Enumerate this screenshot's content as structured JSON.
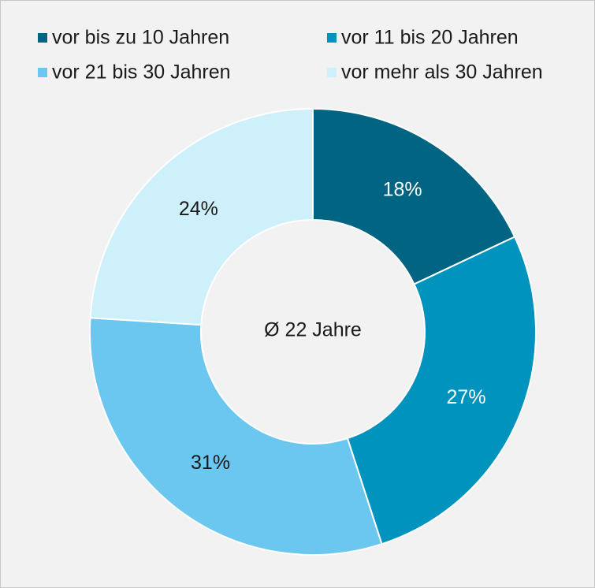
{
  "chart_data": {
    "type": "donut",
    "categories": [
      "vor bis zu 10 Jahren",
      "vor 11 bis 20 Jahren",
      "vor 21 bis 30 Jahren",
      "vor mehr als 30 Jahren"
    ],
    "values": [
      18,
      27,
      31,
      24
    ],
    "value_labels": [
      "18%",
      "27%",
      "31%",
      "24%"
    ],
    "colors": [
      "#006482",
      "#0093bd",
      "#6cc7f0",
      "#cdf0fb"
    ],
    "center_label": "Ø 22 Jahre",
    "legend": "top"
  }
}
